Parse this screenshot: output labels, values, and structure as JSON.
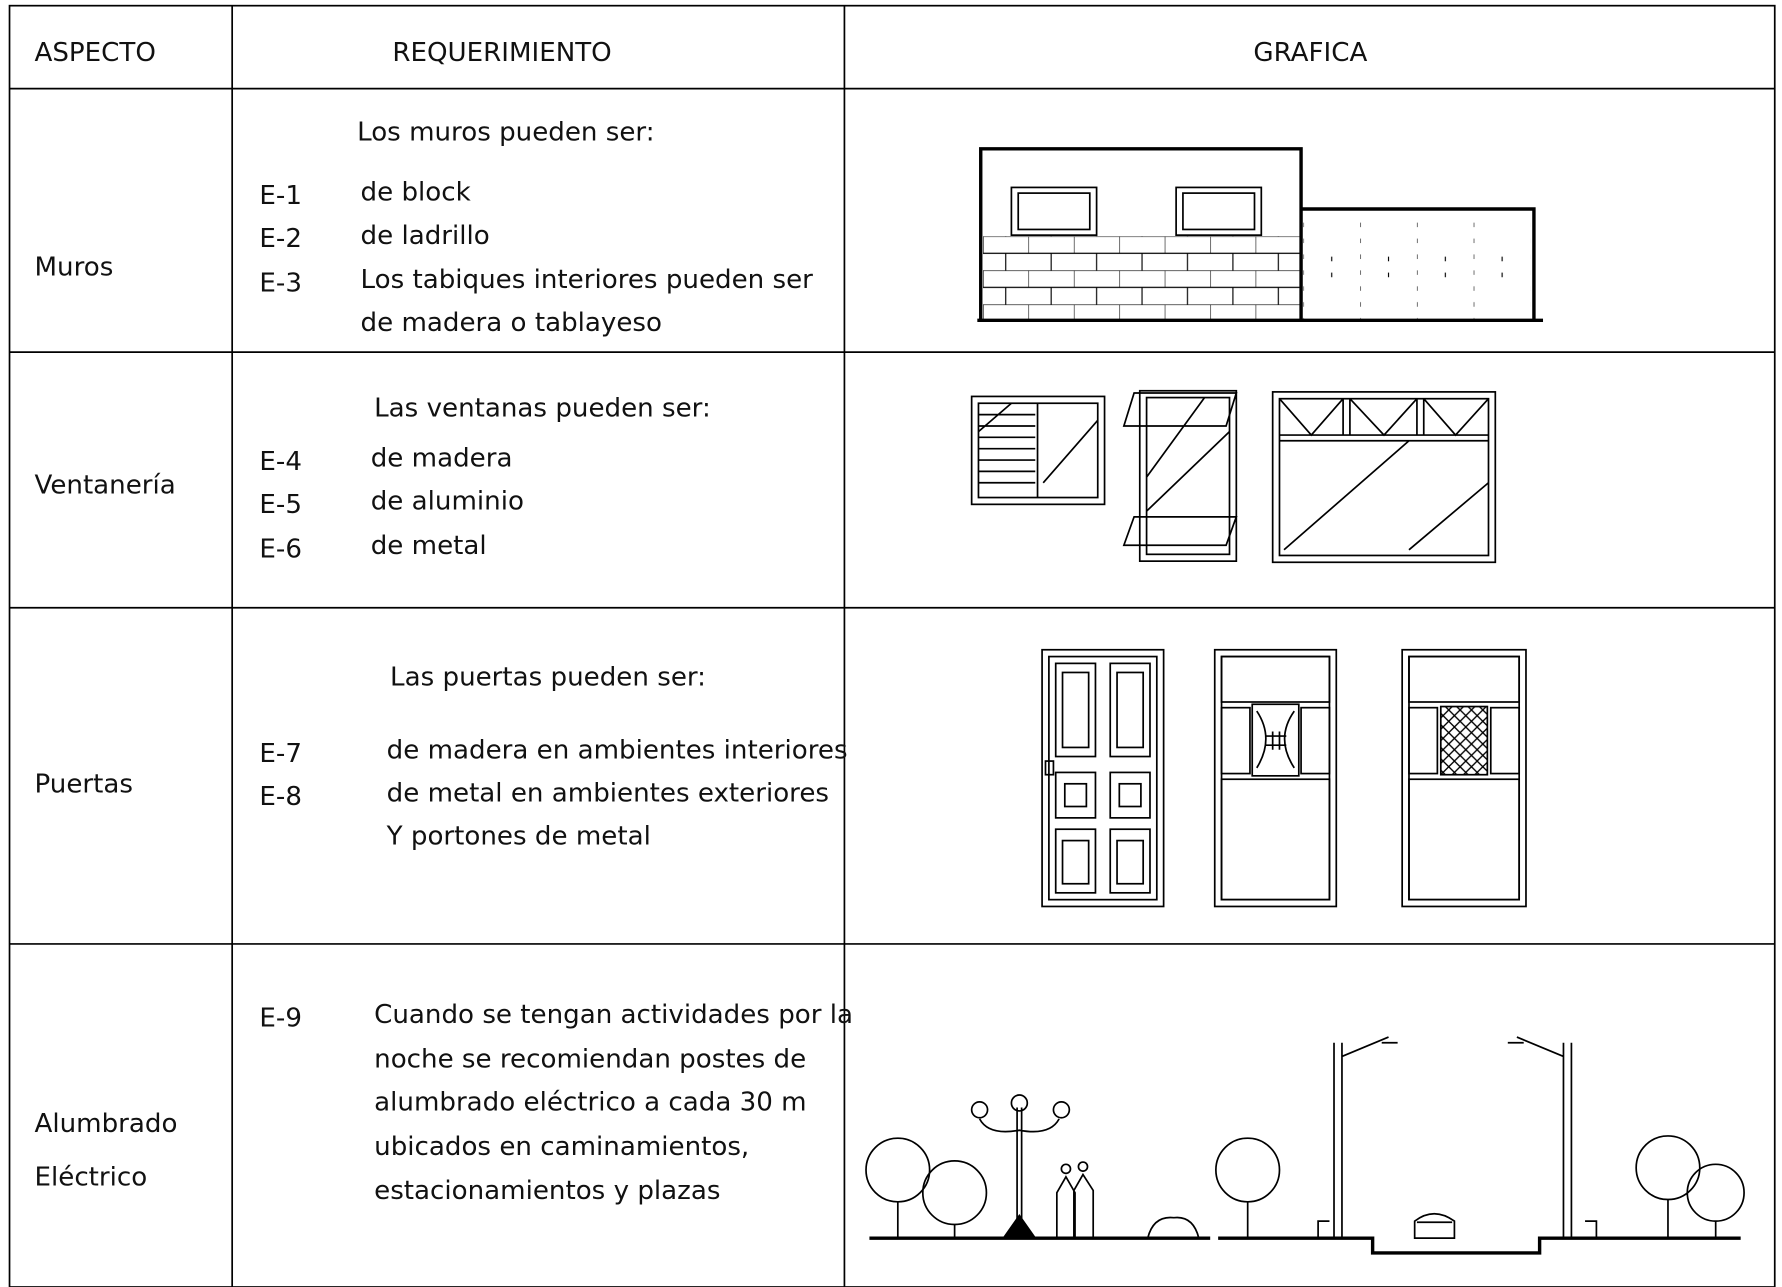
{
  "table": {
    "headers": [
      "ASPECTO",
      "REQUERIMIENTO",
      "GRAFICA"
    ],
    "rows": [
      {
        "aspect": [
          "Muros"
        ],
        "intro": "Los muros pueden ser:",
        "items": [
          {
            "code": "E-1",
            "lines": [
              "de block"
            ]
          },
          {
            "code": "E-2",
            "lines": [
              "de ladrillo"
            ]
          },
          {
            "code": "E-3",
            "lines": [
              "Los tabiques interiores pueden ser",
              "de madera o tablayeso"
            ]
          }
        ]
      },
      {
        "aspect": [
          "Ventanería"
        ],
        "intro": "Las ventanas pueden ser:",
        "items": [
          {
            "code": "E-4",
            "lines": [
              "de madera"
            ]
          },
          {
            "code": "E-5",
            "lines": [
              "de aluminio"
            ]
          },
          {
            "code": "E-6",
            "lines": [
              "de metal"
            ]
          }
        ]
      },
      {
        "aspect": [
          "Puertas"
        ],
        "intro": "Las puertas pueden ser:",
        "items": [
          {
            "code": "E-7",
            "lines": [
              "de madera en ambientes interiores"
            ]
          },
          {
            "code": "E-8",
            "lines": [
              "de metal en ambientes exteriores",
              "Y portones de metal"
            ]
          }
        ]
      },
      {
        "aspect": [
          "Alumbrado",
          "Eléctrico"
        ],
        "items": [
          {
            "code": "E-9",
            "lines": [
              "Cuando se tengan actividades por la",
              "noche se recomiendan postes de",
              "alumbrado eléctrico a cada 30 m",
              "ubicados en caminamientos,",
              "estacionamientos y plazas"
            ]
          }
        ]
      }
    ]
  }
}
